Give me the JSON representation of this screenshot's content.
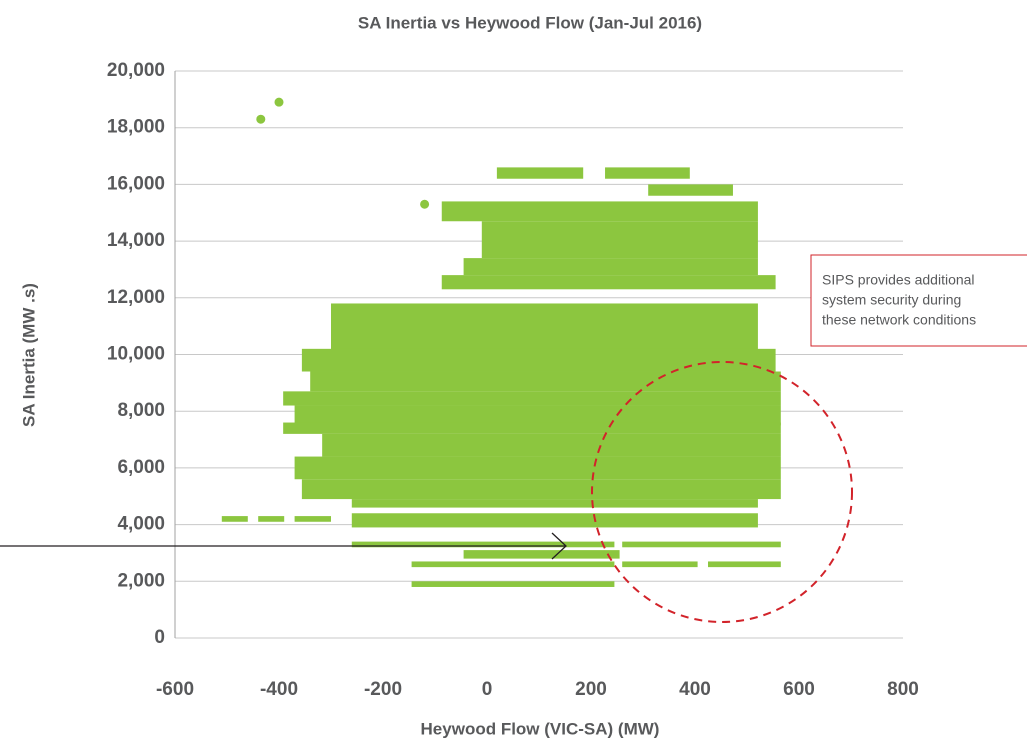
{
  "chart_data": {
    "type": "scatter",
    "title": "SA Inertia vs Heywood Flow (Jan-Jul 2016)",
    "xlabel": "Heywood Flow (VIC-SA) (MW)",
    "ylabel": "SA Inertia (MW .s)",
    "annotation": [
      "SIPS provides additional",
      "system security during",
      "these network conditions"
    ],
    "color": "#8cc63f",
    "x": [
      -435,
      -400,
      -120
    ],
    "y": [
      18300,
      18900,
      15300
    ],
    "regions": [
      {
        "x": [
          19,
          185
        ],
        "y": [
          16200,
          16600
        ]
      },
      {
        "x": [
          227,
          390
        ],
        "y": [
          16200,
          16600
        ]
      },
      {
        "x": [
          310,
          473
        ],
        "y": [
          15600,
          16000
        ]
      },
      {
        "x": [
          -87,
          521
        ],
        "y": [
          14700,
          15400
        ]
      },
      {
        "x": [
          -10,
          521
        ],
        "y": [
          13400,
          14700
        ]
      },
      {
        "x": [
          -45,
          521
        ],
        "y": [
          12800,
          13400
        ]
      },
      {
        "x": [
          -87,
          555
        ],
        "y": [
          12300,
          12800
        ]
      },
      {
        "x": [
          -300,
          521
        ],
        "y": [
          10100,
          11800
        ]
      },
      {
        "x": [
          -356,
          555
        ],
        "y": [
          9400,
          10200
        ]
      },
      {
        "x": [
          -340,
          565
        ],
        "y": [
          8700,
          9400
        ]
      },
      {
        "x": [
          -392,
          565
        ],
        "y": [
          8200,
          8700
        ]
      },
      {
        "x": [
          -370,
          565
        ],
        "y": [
          7500,
          8200
        ]
      },
      {
        "x": [
          -392,
          565
        ],
        "y": [
          7200,
          7600
        ]
      },
      {
        "x": [
          -317,
          565
        ],
        "y": [
          6400,
          7200
        ]
      },
      {
        "x": [
          -370,
          565
        ],
        "y": [
          5600,
          6400
        ]
      },
      {
        "x": [
          -356,
          565
        ],
        "y": [
          4900,
          5600
        ]
      },
      {
        "x": [
          -260,
          521
        ],
        "y": [
          4600,
          4900
        ]
      },
      {
        "x": [
          -510,
          -460
        ],
        "y": [
          4100,
          4300
        ]
      },
      {
        "x": [
          -440,
          -390
        ],
        "y": [
          4100,
          4300
        ]
      },
      {
        "x": [
          -370,
          -300
        ],
        "y": [
          4100,
          4300
        ]
      },
      {
        "x": [
          -260,
          521
        ],
        "y": [
          3900,
          4400
        ]
      },
      {
        "x": [
          -260,
          245
        ],
        "y": [
          3200,
          3400
        ]
      },
      {
        "x": [
          260,
          565
        ],
        "y": [
          3200,
          3400
        ]
      },
      {
        "x": [
          -45,
          255
        ],
        "y": [
          2800,
          3100
        ]
      },
      {
        "x": [
          -145,
          245
        ],
        "y": [
          2500,
          2700
        ]
      },
      {
        "x": [
          260,
          405
        ],
        "y": [
          2500,
          2700
        ]
      },
      {
        "x": [
          425,
          565
        ],
        "y": [
          2500,
          2700
        ]
      },
      {
        "x": [
          -145,
          245
        ],
        "y": [
          1800,
          2000
        ]
      }
    ],
    "xlim": [
      -600,
      800
    ],
    "xticks": [
      -600,
      -400,
      -200,
      0,
      200,
      400,
      600,
      800
    ],
    "ylim": [
      0,
      20000
    ],
    "yticks": [
      0,
      {
        "value": 2000,
        "label": "2,000"
      },
      {
        "value": 4000,
        "label": "4,000"
      },
      {
        "value": 6000,
        "label": "6,000"
      },
      {
        "value": 8000,
        "label": "8,000"
      },
      {
        "value": 10000,
        "label": "10,000"
      },
      {
        "value": 12000,
        "label": "12,000"
      },
      {
        "value": 14000,
        "label": "14,000"
      },
      {
        "value": 16000,
        "label": "16,000"
      },
      {
        "value": 18000,
        "label": "18,000"
      },
      {
        "value": 20000,
        "label": "20,000"
      }
    ],
    "grid": true
  }
}
